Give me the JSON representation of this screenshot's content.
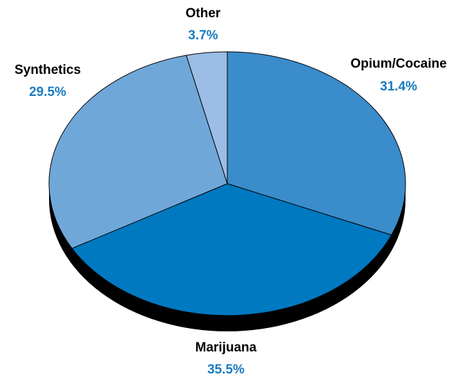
{
  "chart_data": {
    "type": "pie",
    "style": "3d",
    "title": "",
    "slices": [
      {
        "label": "Opium/Cocaine",
        "value": 31.4,
        "value_label": "31.4%",
        "color": "#3a8ccb"
      },
      {
        "label": "Marijuana",
        "value": 35.5,
        "value_label": "35.5%",
        "color": "#0079c1"
      },
      {
        "label": "Synthetics",
        "value": 29.5,
        "value_label": "29.5%",
        "color": "#6fa7d9"
      },
      {
        "label": "Other",
        "value": 3.7,
        "value_label": "3.7%",
        "color": "#9cbde6"
      }
    ],
    "label_color": "#000000",
    "value_label_color": "#1a7cc0",
    "edge_color": "#000000",
    "legend": "none"
  }
}
